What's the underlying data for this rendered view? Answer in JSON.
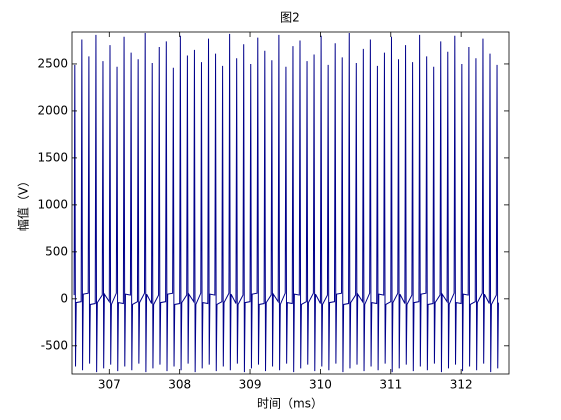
{
  "chart_data": {
    "type": "line",
    "title": "图2",
    "x_label": "时间（ms）",
    "y_label": "幅值（V）",
    "color": "#00008b",
    "xlim": [
      306.47,
      312.68
    ],
    "ylim": [
      -800,
      2840
    ],
    "xticks": [
      307,
      308,
      309,
      310,
      311,
      312
    ],
    "yticks": [
      -500,
      0,
      500,
      1000,
      1500,
      2000,
      2500
    ],
    "x": [
      306.5,
      306.51,
      306.52,
      306.53,
      306.6,
      306.61,
      306.62,
      306.63,
      306.7,
      306.71,
      306.72,
      306.73,
      306.8,
      306.81,
      306.82,
      306.83,
      306.9,
      306.91,
      306.92,
      306.93,
      307.0,
      307.01,
      307.02,
      307.03,
      307.1,
      307.11,
      307.12,
      307.13,
      307.2,
      307.21,
      307.22,
      307.23,
      307.3,
      307.31,
      307.32,
      307.33,
      307.4,
      307.41,
      307.42,
      307.43,
      307.5,
      307.51,
      307.52,
      307.53,
      307.6,
      307.61,
      307.62,
      307.63,
      307.7,
      307.71,
      307.72,
      307.73,
      307.8,
      307.81,
      307.82,
      307.83,
      307.9,
      307.91,
      307.92,
      307.93,
      308.0,
      308.01,
      308.02,
      308.03,
      308.1,
      308.11,
      308.12,
      308.13,
      308.2,
      308.21,
      308.22,
      308.23,
      308.3,
      308.31,
      308.32,
      308.33,
      308.4,
      308.41,
      308.42,
      308.43,
      308.5,
      308.51,
      308.52,
      308.53,
      308.6,
      308.61,
      308.62,
      308.63,
      308.7,
      308.71,
      308.72,
      308.73,
      308.8,
      308.81,
      308.82,
      308.83,
      308.9,
      308.91,
      308.92,
      308.93,
      309.0,
      309.01,
      309.02,
      309.03,
      309.1,
      309.11,
      309.12,
      309.13,
      309.2,
      309.21,
      309.22,
      309.23,
      309.3,
      309.31,
      309.32,
      309.33,
      309.4,
      309.41,
      309.42,
      309.43,
      309.5,
      309.51,
      309.52,
      309.53,
      309.6,
      309.61,
      309.62,
      309.63,
      309.7,
      309.71,
      309.72,
      309.73,
      309.8,
      309.81,
      309.82,
      309.83,
      309.9,
      309.91,
      309.92,
      309.93,
      310.0,
      310.01,
      310.02,
      310.03,
      310.1,
      310.11,
      310.12,
      310.13,
      310.2,
      310.21,
      310.22,
      310.23,
      310.3,
      310.31,
      310.32,
      310.33,
      310.4,
      310.41,
      310.42,
      310.43,
      310.5,
      310.51,
      310.52,
      310.53,
      310.6,
      310.61,
      310.62,
      310.63,
      310.7,
      310.71,
      310.72,
      310.73,
      310.8,
      310.81,
      310.82,
      310.83,
      310.9,
      310.91,
      310.92,
      310.93,
      311.0,
      311.01,
      311.02,
      311.03,
      311.1,
      311.11,
      311.12,
      311.13,
      311.2,
      311.21,
      311.22,
      311.23,
      311.3,
      311.31,
      311.32,
      311.33,
      311.4,
      311.41,
      311.42,
      311.43,
      311.5,
      311.51,
      311.52,
      311.53,
      311.6,
      311.61,
      311.62,
      311.63,
      311.7,
      311.71,
      311.72,
      311.73,
      311.8,
      311.81,
      311.82,
      311.83,
      311.9,
      311.91,
      311.92,
      311.93,
      312.0,
      312.01,
      312.02,
      312.03,
      312.1,
      312.11,
      312.12,
      312.13,
      312.2,
      312.21,
      312.22,
      312.23,
      312.3,
      312.31,
      312.32,
      312.33,
      312.4,
      312.41,
      312.42,
      312.43,
      312.5,
      312.51,
      312.52,
      312.53
    ],
    "values": [
      40,
      2490,
      -720,
      -40,
      -30,
      2760,
      -760,
      50,
      60,
      2580,
      -690,
      -60,
      -50,
      2810,
      -780,
      -40,
      40,
      2530,
      -740,
      50,
      -30,
      2700,
      -700,
      -60,
      60,
      2470,
      -770,
      -40,
      -50,
      2790,
      -720,
      50,
      40,
      2620,
      -760,
      -60,
      -30,
      2550,
      -690,
      -40,
      60,
      2830,
      -780,
      50,
      -50,
      2510,
      -740,
      -60,
      40,
      2680,
      -700,
      -40,
      -30,
      2740,
      -770,
      50,
      60,
      2460,
      -720,
      -60,
      -50,
      2800,
      -760,
      -40,
      40,
      2590,
      -690,
      50,
      -30,
      2650,
      -780,
      -60,
      60,
      2520,
      -740,
      -40,
      -50,
      2770,
      -700,
      50,
      40,
      2610,
      -770,
      -60,
      -30,
      2480,
      -720,
      -40,
      60,
      2820,
      -760,
      50,
      -50,
      2560,
      -690,
      -60,
      40,
      2710,
      -780,
      -40,
      -30,
      2500,
      -740,
      50,
      60,
      2780,
      -700,
      -60,
      -50,
      2640,
      -770,
      -40,
      40,
      2540,
      -720,
      50,
      -30,
      2810,
      -760,
      -60,
      60,
      2470,
      -690,
      -40,
      -50,
      2690,
      -780,
      50,
      40,
      2750,
      -740,
      -60,
      -30,
      2530,
      -700,
      -40,
      60,
      2600,
      -770,
      50,
      -50,
      2800,
      -720,
      -60,
      40,
      2490,
      -760,
      -40,
      -30,
      2720,
      -690,
      50,
      60,
      2570,
      -780,
      -60,
      -50,
      2830,
      -740,
      -40,
      40,
      2510,
      -700,
      50,
      -30,
      2660,
      -770,
      -60,
      60,
      2760,
      -720,
      -40,
      -50,
      2480,
      -760,
      50,
      40,
      2620,
      -690,
      -60,
      -30,
      2790,
      -780,
      -40,
      60,
      2550,
      -740,
      50,
      -50,
      2700,
      -700,
      -60,
      40,
      2520,
      -770,
      -40,
      -30,
      2810,
      -720,
      50,
      60,
      2580,
      -760,
      -60,
      -50,
      2470,
      -690,
      -40,
      40,
      2740,
      -780,
      50,
      -30,
      2630,
      -740,
      -60,
      60,
      2800,
      -700,
      -40,
      -50,
      2500,
      -770,
      50,
      40,
      2680,
      -720,
      -60,
      -30,
      2560,
      -760,
      -40,
      60,
      2770,
      -690,
      50,
      -50,
      2610,
      -780,
      -60,
      40,
      2490,
      -740,
      -40
    ]
  }
}
